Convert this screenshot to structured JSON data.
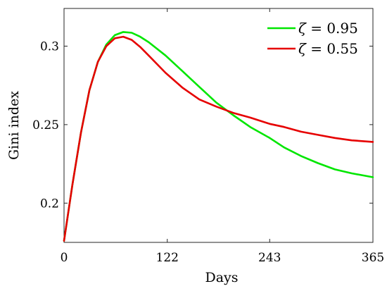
{
  "chart_data": {
    "type": "line",
    "xlabel": "Days",
    "ylabel": "Gini index",
    "xlim": [
      0,
      365
    ],
    "ylim": [
      0.175,
      0.324
    ],
    "xticks": [
      0,
      122,
      243,
      365
    ],
    "xtick_labels": [
      "0",
      "122",
      "243",
      "365"
    ],
    "yticks": [
      0.2,
      0.25,
      0.3
    ],
    "ytick_labels": [
      "0.2",
      "0.25",
      "0.3"
    ],
    "grid": false,
    "legend_position": "top-right",
    "series": [
      {
        "name": "ζ = 0.95",
        "legend_symbol": "ζ",
        "legend_value": "= 0.95",
        "color": "#00e600",
        "points": [
          [
            0,
            0.176
          ],
          [
            10,
            0.212
          ],
          [
            20,
            0.245
          ],
          [
            30,
            0.272
          ],
          [
            40,
            0.29
          ],
          [
            50,
            0.301
          ],
          [
            60,
            0.307
          ],
          [
            70,
            0.309
          ],
          [
            80,
            0.3085
          ],
          [
            90,
            0.306
          ],
          [
            100,
            0.3025
          ],
          [
            120,
            0.294
          ],
          [
            140,
            0.284
          ],
          [
            160,
            0.274
          ],
          [
            180,
            0.264
          ],
          [
            200,
            0.256
          ],
          [
            220,
            0.2485
          ],
          [
            243,
            0.2415
          ],
          [
            260,
            0.2355
          ],
          [
            280,
            0.23
          ],
          [
            300,
            0.2255
          ],
          [
            320,
            0.2215
          ],
          [
            340,
            0.219
          ],
          [
            365,
            0.2165
          ]
        ]
      },
      {
        "name": "ζ = 0.55",
        "legend_symbol": "ζ",
        "legend_value": "= 0.55",
        "color": "#e60000",
        "points": [
          [
            0,
            0.176
          ],
          [
            10,
            0.212
          ],
          [
            20,
            0.245
          ],
          [
            30,
            0.272
          ],
          [
            40,
            0.29
          ],
          [
            50,
            0.3
          ],
          [
            60,
            0.305
          ],
          [
            70,
            0.306
          ],
          [
            80,
            0.304
          ],
          [
            90,
            0.2995
          ],
          [
            100,
            0.294
          ],
          [
            120,
            0.283
          ],
          [
            140,
            0.2735
          ],
          [
            160,
            0.266
          ],
          [
            180,
            0.2615
          ],
          [
            200,
            0.2575
          ],
          [
            220,
            0.2545
          ],
          [
            243,
            0.2505
          ],
          [
            260,
            0.2485
          ],
          [
            280,
            0.2455
          ],
          [
            300,
            0.2435
          ],
          [
            320,
            0.2415
          ],
          [
            340,
            0.24
          ],
          [
            365,
            0.239
          ]
        ]
      }
    ]
  }
}
